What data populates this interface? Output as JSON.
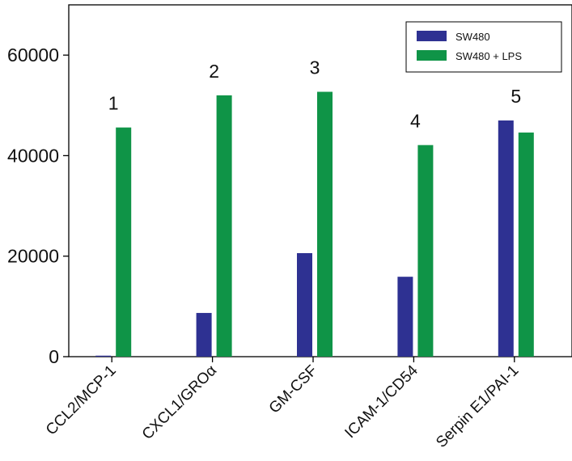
{
  "chart_data": {
    "type": "bar",
    "title": "",
    "xlabel": "",
    "ylabel": "",
    "ylim": [
      0,
      70000
    ],
    "yticks": [
      0,
      20000,
      40000,
      60000
    ],
    "grid": false,
    "legend_position": "top-right",
    "categories": [
      "CCL2/MCP-1",
      "CXCL1/GROα",
      "GM-CSF",
      "ICAM-1/CD54",
      "Serpin E1/PAI-1"
    ],
    "annotations": [
      "1",
      "2",
      "3",
      "4",
      "5"
    ],
    "series": [
      {
        "name": "SW480",
        "color": "#2e3192",
        "values": [
          200,
          8700,
          20600,
          15900,
          47000
        ]
      },
      {
        "name": "SW480 + LPS",
        "color": "#0f9447",
        "values": [
          45600,
          52000,
          52700,
          42100,
          44600
        ]
      }
    ]
  }
}
